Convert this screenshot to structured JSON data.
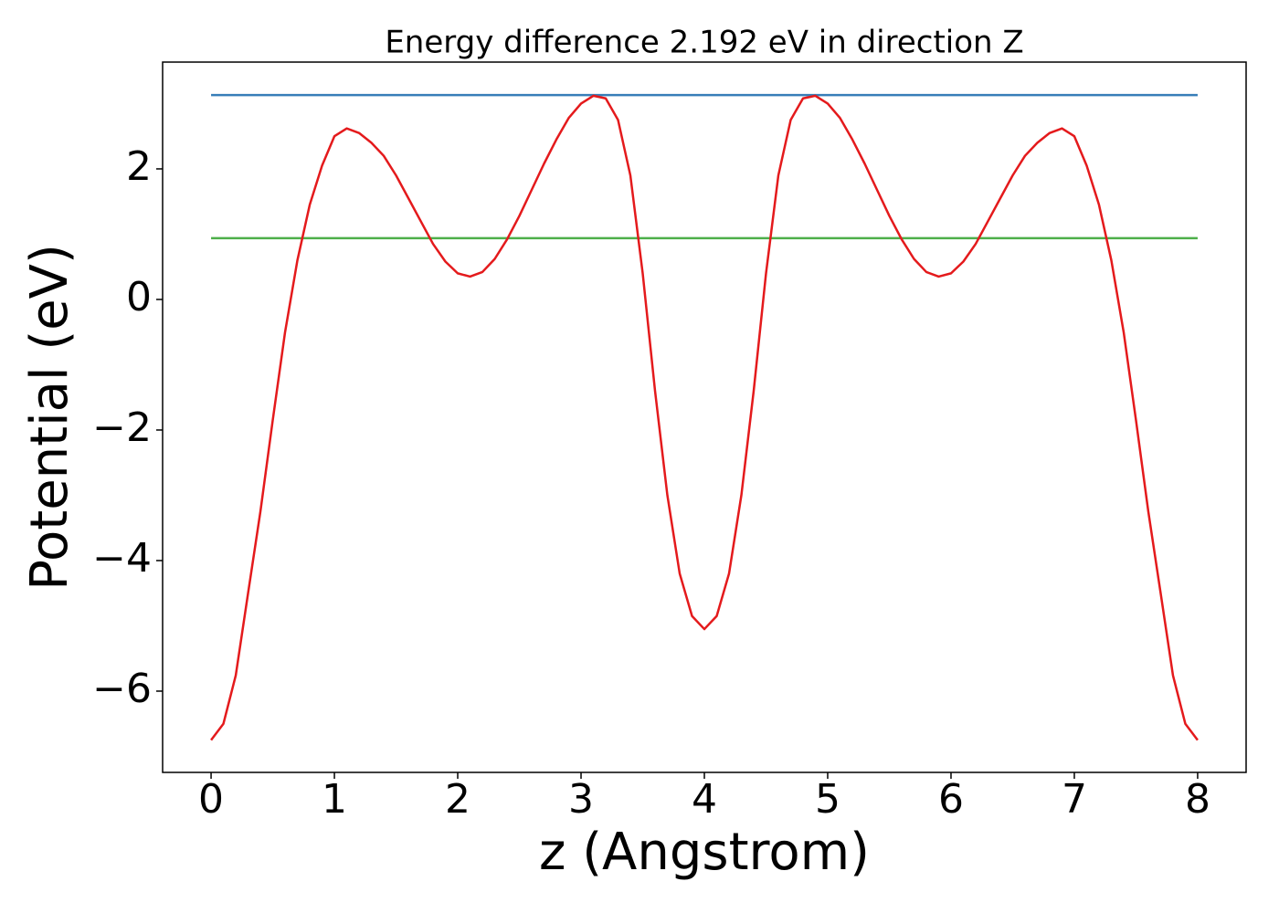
{
  "chart_data": {
    "type": "line",
    "title": "Energy difference 2.192 eV in direction Z",
    "xlabel": "z (Angstrom)",
    "ylabel": "Potential (eV)",
    "xlim": [
      -0.393,
      8.393
    ],
    "ylim": [
      -7.245,
      3.636
    ],
    "xticks": [
      0,
      1,
      2,
      3,
      4,
      5,
      6,
      7,
      8
    ],
    "yticks": [
      {
        "value": -6,
        "label": "−6"
      },
      {
        "value": -4,
        "label": "−4"
      },
      {
        "value": -2,
        "label": "−2"
      },
      0,
      2
    ],
    "series": [
      {
        "color": "#377eb8",
        "x": [
          0,
          8
        ],
        "values": [
          3.13,
          3.13
        ]
      },
      {
        "color": "#4daf4a",
        "x": [
          0,
          8
        ],
        "values": [
          0.938,
          0.938
        ]
      },
      {
        "color": "#e41a1c",
        "x": [
          0,
          0.1,
          0.2,
          0.3,
          0.4,
          0.5,
          0.6,
          0.7,
          0.8,
          0.9,
          1.0,
          1.1,
          1.2,
          1.3,
          1.4,
          1.5,
          1.6,
          1.7,
          1.8,
          1.9,
          2.0,
          2.1,
          2.2,
          2.3,
          2.4,
          2.5,
          2.6,
          2.7,
          2.8,
          2.9,
          3.0,
          3.1,
          3.2,
          3.3,
          3.4,
          3.5,
          3.6,
          3.7,
          3.8,
          3.9,
          4.0,
          4.1,
          4.2,
          4.3,
          4.4,
          4.5,
          4.6,
          4.7,
          4.8,
          4.9,
          5.0,
          5.1,
          5.2,
          5.3,
          5.4,
          5.5,
          5.6,
          5.7,
          5.8,
          5.9,
          6.0,
          6.1,
          6.2,
          6.3,
          6.4,
          6.5,
          6.6,
          6.7,
          6.8,
          6.9,
          7.0,
          7.1,
          7.2,
          7.3,
          7.4,
          7.5,
          7.6,
          7.7,
          7.8,
          7.9,
          8.0
        ],
        "values": [
          -6.75,
          -6.5,
          -5.76,
          -4.5,
          -3.25,
          -1.85,
          -0.5,
          0.6,
          1.45,
          2.05,
          2.5,
          2.62,
          2.55,
          2.4,
          2.2,
          1.9,
          1.55,
          1.2,
          0.85,
          0.58,
          0.4,
          0.35,
          0.42,
          0.62,
          0.92,
          1.28,
          1.68,
          2.08,
          2.45,
          2.78,
          3.0,
          3.12,
          3.08,
          2.75,
          1.9,
          0.4,
          -1.4,
          -3.0,
          -4.2,
          -4.85,
          -5.05,
          -4.85,
          -4.2,
          -3.0,
          -1.4,
          0.4,
          1.9,
          2.75,
          3.08,
          3.12,
          3.0,
          2.78,
          2.45,
          2.08,
          1.68,
          1.28,
          0.92,
          0.62,
          0.42,
          0.35,
          0.4,
          0.58,
          0.85,
          1.2,
          1.55,
          1.9,
          2.2,
          2.4,
          2.55,
          2.62,
          2.5,
          2.05,
          1.45,
          0.6,
          -0.5,
          -1.85,
          -3.25,
          -4.5,
          -5.76,
          -6.5,
          -6.75
        ]
      }
    ]
  }
}
